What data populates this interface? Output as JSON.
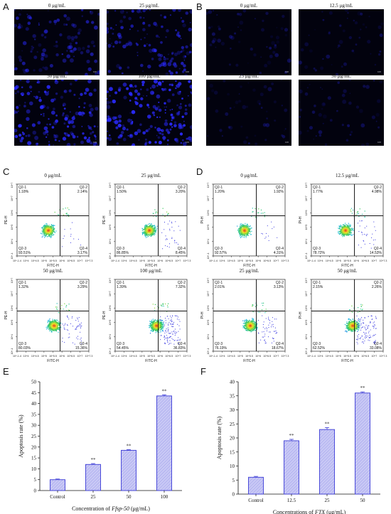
{
  "panel_letters": [
    "A",
    "B",
    "C",
    "D",
    "E",
    "F"
  ],
  "micro_A": [
    {
      "cap": "0 μg/mL",
      "density": 110,
      "bright": 0.6
    },
    {
      "cap": "25 μg/mL",
      "density": 140,
      "bright": 0.7
    },
    {
      "cap": "50 μg/mL",
      "density": 170,
      "bright": 0.9
    },
    {
      "cap": "100 μg/mL",
      "density": 200,
      "bright": 1.0
    }
  ],
  "micro_B": [
    {
      "cap": "0 μg/mL",
      "density": 60,
      "bright": 0.3
    },
    {
      "cap": "12.5 μg/mL",
      "density": 50,
      "bright": 0.28
    },
    {
      "cap": "25 μg/mL",
      "density": 50,
      "bright": 0.28
    },
    {
      "cap": "50 μg/mL",
      "density": 55,
      "bright": 0.3
    }
  ],
  "scale_label": "100",
  "flow_C": {
    "xlabel": "FITC-H",
    "ylabel": "PE-H",
    "plots": [
      {
        "cap": "0 μg/mL",
        "q1": "Q2-1",
        "q1v": "1.18%",
        "q2": "Q2-2",
        "q2v": "2.14%",
        "q3": "Q2-3",
        "q3v": "93.51%",
        "q4": "Q2-4",
        "q4v": "3.17%"
      },
      {
        "cap": "25 μg/mL",
        "q1": "Q2-1",
        "q1v": "1.50%",
        "q2": "Q2-2",
        "q2v": "3.20%",
        "q3": "Q2-3",
        "q3v": "86.85%",
        "q4": "Q2-4",
        "q4v": "8.45%"
      },
      {
        "cap": "50 μg/mL",
        "q1": "Q2-1",
        "q1v": "1.32%",
        "q2": "Q2-2",
        "q2v": "3.29%",
        "q3": "Q2-3",
        "q3v": "80.03%",
        "q4": "Q2-4",
        "q4v": "15.36%"
      },
      {
        "cap": "100 μg/mL",
        "q1": "Q2-1",
        "q1v": "1.39%",
        "q2": "Q2-2",
        "q2v": "7.32%",
        "q3": "Q2-3",
        "q3v": "54.45%",
        "q4": "Q2-4",
        "q4v": "36.83%"
      }
    ]
  },
  "flow_D": {
    "xlabel": "FITC-H",
    "ylabel": "PI-H",
    "plots": [
      {
        "cap": "0 μg/mL",
        "q1": "Q2-1",
        "q1v": "1.20%",
        "q2": "Q2-2",
        "q2v": "1.92%",
        "q3": "Q2-3",
        "q3v": "92.57%",
        "q4": "Q2-4",
        "q4v": "4.31%"
      },
      {
        "cap": "12.5 μg/mL",
        "q1": "Q2-1",
        "q1v": "1.77%",
        "q2": "Q2-2",
        "q2v": "4.98%",
        "q3": "Q2-3",
        "q3v": "78.72%",
        "q4": "Q2-4",
        "q4v": "14.53%"
      },
      {
        "cap": "25 μg/mL",
        "q1": "Q2-1",
        "q1v": "2.01%",
        "q2": "Q2-2",
        "q2v": "3.13%",
        "q3": "Q2-3",
        "q3v": "76.19%",
        "q4": "Q2-4",
        "q4v": "18.67%"
      },
      {
        "cap": "50 μg/mL",
        "q1": "Q2-1",
        "q1v": "2.15%",
        "q2": "Q2-2",
        "q2v": "2.26%",
        "q3": "Q2-3",
        "q3v": "62.52%",
        "q4": "Q2-4",
        "q4v": "33.08%"
      }
    ]
  },
  "flow_ticks": {
    "x": [
      "10^-1.4",
      "10^4",
      "10^4.5",
      "10^5",
      "10^5.5",
      "10^6",
      "10^6.5",
      "10^7",
      "10^7.3"
    ],
    "y": [
      "10^-1",
      "10^4",
      "10^5",
      "10^6",
      "10^7",
      "10^7.3"
    ]
  },
  "chart_data": [
    {
      "type": "bar",
      "categories": [
        "Control",
        "25",
        "50",
        "100"
      ],
      "values": [
        5,
        12,
        18.5,
        43.5
      ],
      "errors": [
        0.3,
        0.4,
        0.3,
        0.5
      ],
      "sig": [
        "",
        "**",
        "**",
        "**"
      ],
      "ylim": [
        0,
        50
      ],
      "yticks": [
        0,
        5,
        10,
        15,
        20,
        25,
        30,
        35,
        40,
        45,
        50
      ],
      "ylabel": "Apoptosis rate (%)",
      "xlabel_pre": "Concentration of ",
      "xlabel_it": "Ffsp-50",
      "xlabel_post": " (μg/mL)"
    },
    {
      "type": "bar",
      "categories": [
        "Control",
        "12.5",
        "25",
        "50"
      ],
      "values": [
        6,
        19,
        23,
        36
      ],
      "errors": [
        0.3,
        0.5,
        0.7,
        0.4
      ],
      "sig": [
        "",
        "**",
        "**",
        "**"
      ],
      "ylim": [
        0,
        40
      ],
      "yticks": [
        0,
        5,
        10,
        15,
        20,
        25,
        30,
        35,
        40
      ],
      "ylabel": "Apoptosis rate (%)",
      "xlabel_pre": "Concentrations of ",
      "xlabel_it": "FTX",
      "xlabel_post": " (μg/mL)"
    }
  ],
  "colors": {
    "bar_stroke": "#3b3bd6",
    "bar_fill": "#c9c9f5",
    "stain": "#2a2aff"
  }
}
